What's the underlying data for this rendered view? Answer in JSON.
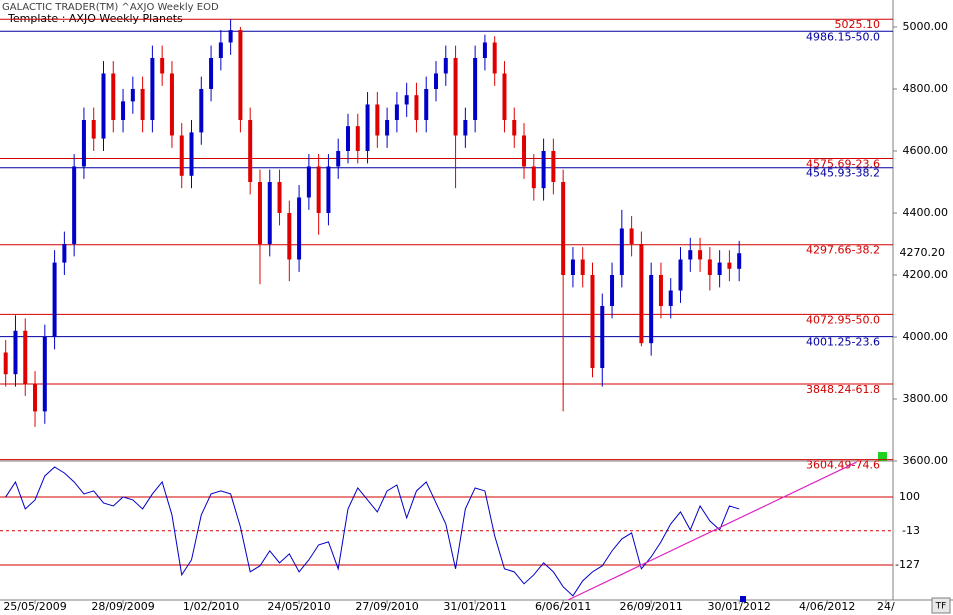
{
  "chart_data": {
    "type": "candlestick",
    "title": "GALACTIC TRADER(TM)    ^AXJO Weekly EOD",
    "subtitle": "Template : AXJO Weekly Planets",
    "corner_label": "TF",
    "up_color": "#0000c8",
    "down_color": "#e00000",
    "categories": [
      null,
      null,
      null,
      "25/05/2009",
      null,
      null,
      null,
      null,
      null,
      null,
      null,
      null,
      "28/09/2009",
      null,
      null,
      null,
      null,
      null,
      null,
      null,
      null,
      "1/02/2010",
      null,
      null,
      null,
      null,
      null,
      null,
      null,
      null,
      "24/05/2010",
      null,
      null,
      null,
      null,
      null,
      null,
      null,
      null,
      "27/09/2010",
      null,
      null,
      null,
      null,
      null,
      null,
      null,
      null,
      "31/01/2011",
      null,
      null,
      null,
      null,
      null,
      null,
      null,
      null,
      "6/06/2011",
      null,
      null,
      null,
      null,
      null,
      null,
      null,
      null,
      "26/09/2011",
      null,
      null,
      null,
      null,
      null,
      null,
      null,
      null,
      "30/01/2012",
      null,
      null,
      null,
      null,
      null,
      null,
      null,
      null,
      "4/06/2012",
      null,
      null,
      null,
      null,
      null,
      "24/"
    ],
    "open": [
      3950,
      3880,
      4020,
      3850,
      3760,
      4000,
      4240,
      4300,
      4550,
      4700,
      4640,
      4850,
      4700,
      4760,
      4800,
      4700,
      4900,
      4850,
      4650,
      4520,
      4660,
      4800,
      4900,
      4950,
      4990,
      4700,
      4500,
      4300,
      4500,
      4400,
      4250,
      4450,
      4550,
      4400,
      4550,
      4600,
      4680,
      4600,
      4750,
      4650,
      4700,
      4750,
      4780,
      4700,
      4800,
      4850,
      4900,
      4650,
      4700,
      4900,
      4950,
      4850,
      4700,
      4650,
      4550,
      4480,
      4600,
      4500,
      4200,
      4250,
      4200,
      3900,
      4100,
      4200,
      4350,
      4300,
      3980,
      4200,
      4100,
      4150,
      4250,
      4280,
      4250,
      4200,
      4240,
      4220,
      null,
      null,
      null,
      null,
      null,
      null,
      null,
      null,
      null,
      null,
      null,
      null,
      null,
      null,
      null
    ],
    "high": [
      3990,
      4070,
      4060,
      3890,
      4040,
      4280,
      4340,
      4590,
      4740,
      4740,
      4890,
      4890,
      4800,
      4840,
      4840,
      4940,
      4940,
      4890,
      4690,
      4700,
      4840,
      4940,
      4990,
      5025,
      5000,
      4740,
      4540,
      4540,
      4540,
      4440,
      4490,
      4590,
      4590,
      4590,
      4640,
      4720,
      4720,
      4790,
      4790,
      4740,
      4790,
      4820,
      4820,
      4840,
      4890,
      4940,
      4940,
      4740,
      4940,
      4975,
      4970,
      4890,
      4740,
      4690,
      4590,
      4640,
      4640,
      4540,
      4290,
      4290,
      4240,
      4140,
      4240,
      4410,
      4390,
      4340,
      4240,
      4240,
      4190,
      4290,
      4320,
      4320,
      4290,
      4280,
      4280,
      4310,
      null,
      null,
      null,
      null,
      null,
      null,
      null,
      null,
      null,
      null,
      null,
      null,
      null,
      null,
      null
    ],
    "low": [
      3840,
      3840,
      3810,
      3710,
      3720,
      3960,
      4200,
      4260,
      4510,
      4600,
      4600,
      4660,
      4660,
      4720,
      4660,
      4660,
      4810,
      4610,
      4480,
      4480,
      4620,
      4760,
      4860,
      4910,
      4660,
      4460,
      4170,
      4260,
      4360,
      4180,
      4210,
      4410,
      4330,
      4360,
      4510,
      4560,
      4560,
      4560,
      4610,
      4610,
      4660,
      4710,
      4660,
      4660,
      4760,
      4810,
      4480,
      4610,
      4660,
      4860,
      4810,
      4660,
      4610,
      4510,
      4440,
      4440,
      4460,
      3760,
      4160,
      4160,
      3870,
      3840,
      4060,
      4160,
      4260,
      3970,
      3940,
      4060,
      4060,
      4110,
      4210,
      4210,
      4150,
      4160,
      4180,
      4180,
      null,
      null,
      null,
      null,
      null,
      null,
      null,
      null,
      null,
      null,
      null,
      null,
      null,
      null,
      null
    ],
    "close": [
      3880,
      4020,
      3850,
      3760,
      4000,
      4240,
      4300,
      4550,
      4700,
      4640,
      4850,
      4700,
      4760,
      4800,
      4700,
      4900,
      4850,
      4650,
      4520,
      4660,
      4800,
      4900,
      4950,
      4990,
      4700,
      4500,
      4300,
      4500,
      4400,
      4250,
      4450,
      4550,
      4400,
      4550,
      4600,
      4680,
      4600,
      4750,
      4650,
      4700,
      4750,
      4780,
      4700,
      4800,
      4850,
      4900,
      4650,
      4700,
      4900,
      4950,
      4850,
      4700,
      4650,
      4550,
      4480,
      4600,
      4500,
      4200,
      4250,
      4200,
      3900,
      4100,
      4200,
      4350,
      4300,
      3980,
      4200,
      4100,
      4150,
      4250,
      4280,
      4250,
      4200,
      4240,
      4220,
      4270.2,
      null,
      null,
      null,
      null,
      null,
      null,
      null,
      null,
      null,
      null,
      null,
      null,
      null,
      null,
      null
    ],
    "last_label": "4270.20",
    "ylim": [
      3600,
      5087
    ],
    "yticks": [
      {
        "value": 3600,
        "label": "3600.00"
      },
      {
        "value": 3800,
        "label": "3800.00"
      },
      {
        "value": 4000,
        "label": "4000.00"
      },
      {
        "value": 4200,
        "label": "4200.00"
      },
      {
        "value": 4400,
        "label": "4400.00"
      },
      {
        "value": 4600,
        "label": "4600.00"
      },
      {
        "value": 4800,
        "label": "4800.00"
      },
      {
        "value": 5000,
        "label": "5000.00"
      }
    ],
    "levels": [
      {
        "value": 5025.1,
        "label": "5025.10",
        "color": "#d00000"
      },
      {
        "value": 4986.15,
        "label": "4986.15-50.0",
        "color": "#0000a0"
      },
      {
        "value": 4575.69,
        "label": "4575.69-23.6",
        "color": "#d00000"
      },
      {
        "value": 4545.93,
        "label": "4545.93-38.2",
        "color": "#0000a0"
      },
      {
        "value": 4297.66,
        "label": "4297.66-38.2",
        "color": "#d00000"
      },
      {
        "value": 4072.95,
        "label": "4072.95-50.0",
        "color": "#d00000"
      },
      {
        "value": 4001.25,
        "label": "4001.25-23.6",
        "color": "#0000a0"
      },
      {
        "value": 3848.24,
        "label": "3848.24-61.8",
        "color": "#d00000"
      },
      {
        "value": 3604.49,
        "label": "3604.49-74.6",
        "color": "#d00000"
      }
    ],
    "oscillator": {
      "color": "#0000c8",
      "values": [
        100,
        150,
        60,
        90,
        170,
        200,
        180,
        150,
        110,
        120,
        80,
        70,
        100,
        90,
        60,
        110,
        150,
        40,
        -160,
        -110,
        40,
        110,
        120,
        110,
        0,
        -150,
        -130,
        -80,
        -120,
        -90,
        -150,
        -110,
        -60,
        -50,
        -140,
        60,
        130,
        90,
        50,
        120,
        140,
        30,
        120,
        150,
        80,
        10,
        -140,
        60,
        130,
        120,
        -30,
        -140,
        -150,
        -190,
        -160,
        -120,
        -150,
        -200,
        -230,
        -180,
        -150,
        -130,
        -80,
        -40,
        -20,
        -140,
        -100,
        -50,
        10,
        50,
        -10,
        70,
        20,
        -10,
        70,
        60,
        null,
        null,
        null,
        null,
        null,
        null,
        null,
        null,
        null,
        null,
        null,
        null,
        null,
        null,
        null
      ],
      "ylim": [
        -244,
        220
      ],
      "yticks": [
        100,
        -13,
        -127
      ],
      "grid_dash": [
        false,
        true,
        false
      ],
      "grid_color": "#d00000",
      "trendline": {
        "color": "#e020c0",
        "x": [
          57.5,
          87
        ],
        "y": [
          -244,
          216
        ]
      }
    }
  }
}
